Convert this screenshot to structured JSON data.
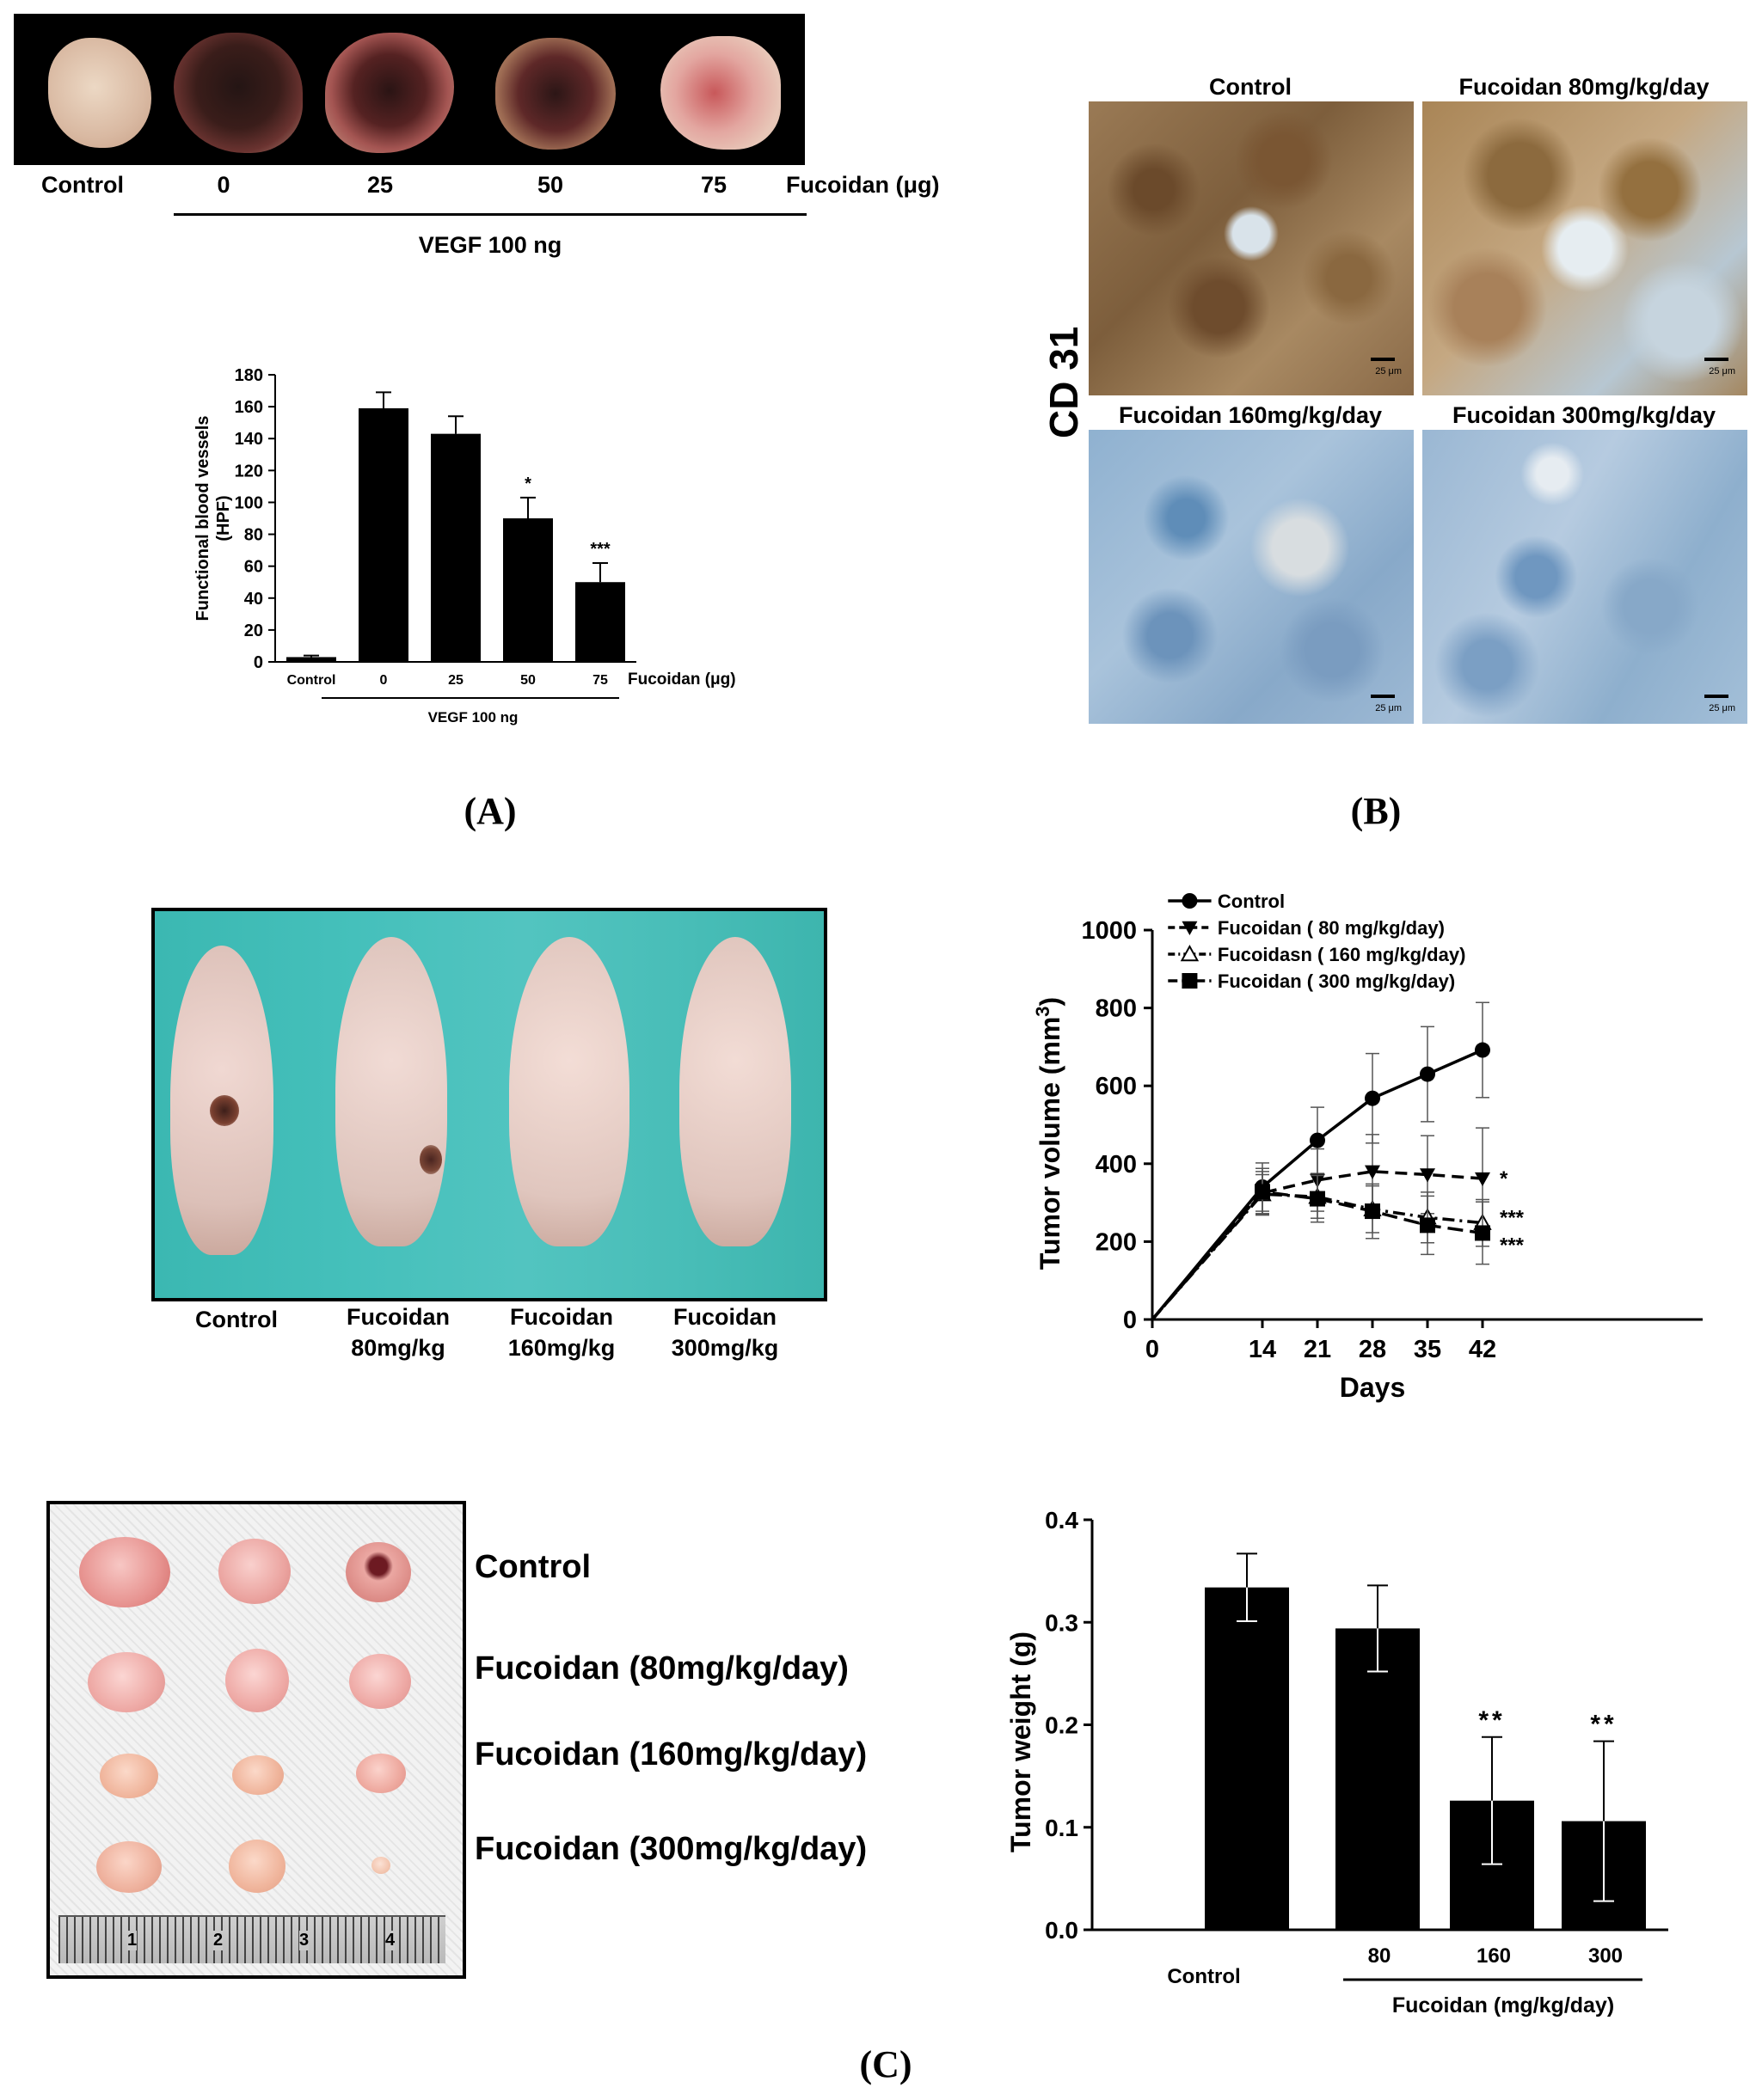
{
  "panelA": {
    "letter": "A",
    "photo_labels": [
      "Control",
      "0",
      "25",
      "50",
      "75"
    ],
    "photo_unit": "Fucoidan (μg)",
    "vegf_label": "VEGF 100 ng",
    "chart_data": {
      "type": "bar",
      "categories": [
        "Control",
        "0",
        "25",
        "50",
        "75"
      ],
      "values": [
        3,
        159,
        143,
        90,
        50
      ],
      "errors": [
        1,
        10,
        11,
        13,
        12
      ],
      "significance": [
        "",
        "",
        "",
        "*",
        "***"
      ],
      "ylabel": "Functional blood vessels (HPF)",
      "ylabel_line1": "Functional blood vessels",
      "ylabel_line2": "(HPF)",
      "xlabel": "Fucoidan (μg)",
      "group_label": "VEGF 100 ng",
      "ylim": [
        0,
        180
      ],
      "yticks": [
        0,
        20,
        40,
        60,
        80,
        100,
        120,
        140,
        160,
        180
      ]
    }
  },
  "panelB": {
    "letter": "B",
    "marker_label": "CD 31",
    "images": [
      {
        "title": "Control",
        "scale": "25 μm"
      },
      {
        "title": "Fucoidan 80mg/kg/day",
        "scale": "25 μm"
      },
      {
        "title": "Fucoidan 160mg/kg/day",
        "scale": "25 μm"
      },
      {
        "title": "Fucoidan 300mg/kg/day",
        "scale": "25 μm"
      }
    ]
  },
  "panelC": {
    "letter": "C",
    "mice_labels": [
      {
        "line1": "Control",
        "line2": ""
      },
      {
        "line1": "Fucoidan",
        "line2": "80mg/kg"
      },
      {
        "line1": "Fucoidan",
        "line2": "160mg/kg"
      },
      {
        "line1": "Fucoidan",
        "line2": "300mg/kg"
      }
    ],
    "tumor_labels": [
      "Control",
      "Fucoidan (80mg/kg/day)",
      "Fucoidan (160mg/kg/day)",
      "Fucoidan (300mg/kg/day)"
    ],
    "ruler_numbers": [
      "1",
      "2",
      "3",
      "4"
    ],
    "volume_chart": {
      "type": "line",
      "x": [
        0,
        14,
        21,
        28,
        35,
        42
      ],
      "xlabel": "Days",
      "ylabel": "Tumor volume (mm³)",
      "ylabel_main": "Tumor volume (mm",
      "ylabel_sup": "3",
      "ylabel_end": ")",
      "ylim": [
        0,
        1000
      ],
      "yticks": [
        0,
        200,
        400,
        600,
        800,
        1000
      ],
      "series": [
        {
          "name": "Control",
          "values": [
            0,
            340,
            460,
            568,
            630,
            692
          ],
          "errors": [
            0,
            62,
            85,
            115,
            122,
            122
          ],
          "marker": "circle",
          "dash": "",
          "sig": ""
        },
        {
          "name": "Fucoidan ( 80 mg/kg/day)",
          "values": [
            0,
            325,
            358,
            380,
            372,
            362
          ],
          "errors": [
            0,
            55,
            80,
            95,
            100,
            130
          ],
          "marker": "triangle-down",
          "dash": "14,8",
          "sig": "*"
        },
        {
          "name": "Fucoidasn ( 160 mg/kg/day)",
          "values": [
            0,
            322,
            315,
            283,
            262,
            248
          ],
          "errors": [
            0,
            50,
            55,
            60,
            65,
            60
          ],
          "marker": "triangle-up-open",
          "dash": "14,6,3,6",
          "sig": "***"
        },
        {
          "name": "Fucoidan ( 300 mg/kg/day)",
          "values": [
            0,
            328,
            310,
            278,
            242,
            222
          ],
          "errors": [
            0,
            60,
            60,
            70,
            75,
            80
          ],
          "marker": "square",
          "dash": "18,8",
          "sig": "***"
        }
      ]
    },
    "weight_chart": {
      "type": "bar",
      "categories": [
        "Control",
        "80",
        "160",
        "300"
      ],
      "values": [
        0.334,
        0.294,
        0.126,
        0.106
      ],
      "errors": [
        0.033,
        0.042,
        0.062,
        0.078
      ],
      "significance": [
        "",
        "",
        "**",
        "**"
      ],
      "ylabel": "Tumor weight (g)",
      "xlabel": "Fucoidan (mg/kg/day)",
      "ylim": [
        0,
        0.4
      ],
      "yticks": [
        "0.0",
        "0.1",
        "0.2",
        "0.3",
        "0.4"
      ]
    }
  }
}
